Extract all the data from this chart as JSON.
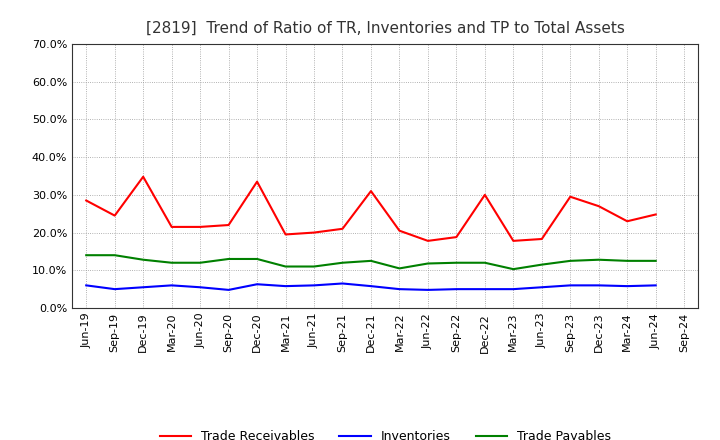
{
  "title": "[2819]  Trend of Ratio of TR, Inventories and TP to Total Assets",
  "x_labels": [
    "Jun-19",
    "Sep-19",
    "Dec-19",
    "Mar-20",
    "Jun-20",
    "Sep-20",
    "Dec-20",
    "Mar-21",
    "Jun-21",
    "Sep-21",
    "Dec-21",
    "Mar-22",
    "Jun-22",
    "Sep-22",
    "Dec-22",
    "Mar-23",
    "Jun-23",
    "Sep-23",
    "Dec-23",
    "Mar-24",
    "Jun-24",
    "Sep-24"
  ],
  "trade_receivables": [
    0.285,
    0.245,
    0.348,
    0.215,
    0.215,
    0.22,
    0.335,
    0.195,
    0.2,
    0.21,
    0.31,
    0.205,
    0.178,
    0.188,
    0.3,
    0.178,
    0.183,
    0.295,
    0.27,
    0.23,
    0.248,
    null
  ],
  "inventories": [
    0.06,
    0.05,
    0.055,
    0.06,
    0.055,
    0.048,
    0.063,
    0.058,
    0.06,
    0.065,
    0.058,
    0.05,
    0.048,
    0.05,
    0.05,
    0.05,
    0.055,
    0.06,
    0.06,
    0.058,
    0.06,
    null
  ],
  "trade_payables": [
    0.14,
    0.14,
    0.128,
    0.12,
    0.12,
    0.13,
    0.13,
    0.11,
    0.11,
    0.12,
    0.125,
    0.105,
    0.118,
    0.12,
    0.12,
    0.103,
    0.115,
    0.125,
    0.128,
    0.125,
    0.125,
    null
  ],
  "tr_color": "#FF0000",
  "inv_color": "#0000FF",
  "tp_color": "#008000",
  "ylim": [
    0.0,
    0.7
  ],
  "yticks": [
    0.0,
    0.1,
    0.2,
    0.3,
    0.4,
    0.5,
    0.6,
    0.7
  ],
  "background_color": "#FFFFFF",
  "plot_bg_color": "#FFFFFF",
  "grid_color": "#999999",
  "title_fontsize": 11,
  "tick_fontsize": 8,
  "legend_fontsize": 9
}
